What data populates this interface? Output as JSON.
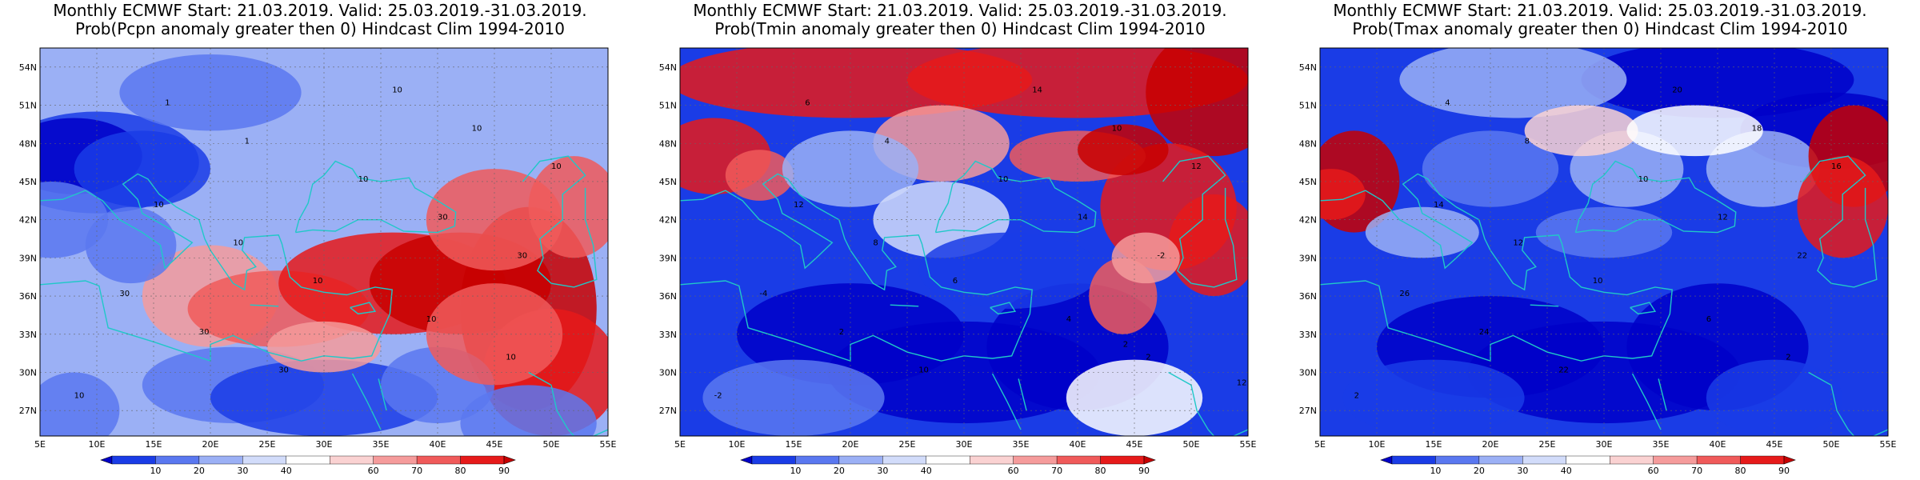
{
  "panels": [
    {
      "title_line1": "Monthly ECMWF Start: 21.03.2019. Valid: 25.03.2019.-31.03.2019.",
      "title_line2": "Prob(Pcpn anomaly greater then 0) Hindcast Clim 1994-2010",
      "contour_labels": [
        "10",
        "10",
        "10",
        "10",
        "10",
        "10",
        "10",
        "10",
        "10",
        "30",
        "30",
        "30",
        "30",
        "30",
        "10",
        "1",
        "1"
      ]
    },
    {
      "title_line1": "Monthly ECMWF Start: 21.03.2019. Valid: 25.03.2019.-31.03.2019.",
      "title_line2": "Prob(Tmin anomaly greater then 0) Hindcast Clim 1994-2010",
      "contour_labels": [
        "-2",
        "2",
        "4",
        "6",
        "8",
        "12",
        "12",
        "10",
        "14",
        "10",
        "2",
        "-4",
        "-2",
        "14",
        "10",
        "4",
        "6",
        "12",
        "2"
      ]
    },
    {
      "title_line1": "Monthly ECMWF Start: 21.03.2019. Valid: 25.03.2019.-31.03.2019.",
      "title_line2": "Prob(Tmax anomaly greater then 0) Hindcast Clim 1994-2010",
      "contour_labels": [
        "2",
        "2",
        "6",
        "10",
        "12",
        "14",
        "16",
        "18",
        "20",
        "22",
        "24",
        "26",
        "22",
        "12",
        "10",
        "8",
        "4"
      ]
    }
  ],
  "y_ticks": [
    "54N",
    "51N",
    "48N",
    "45N",
    "42N",
    "39N",
    "36N",
    "33N",
    "30N",
    "27N"
  ],
  "x_ticks": [
    "5E",
    "10E",
    "15E",
    "20E",
    "25E",
    "30E",
    "35E",
    "40E",
    "45E",
    "50E",
    "55E"
  ],
  "colorbar": {
    "labels": [
      "10",
      "20",
      "30",
      "40",
      "60",
      "70",
      "80",
      "90"
    ],
    "colors": [
      "#0000c8",
      "#1a3ce6",
      "#5a78f0",
      "#9bb0f5",
      "#d2dcfa",
      "#ffffff",
      "#fad2d2",
      "#f59b9b",
      "#f05a5a",
      "#e61a1a",
      "#c80000"
    ]
  }
}
